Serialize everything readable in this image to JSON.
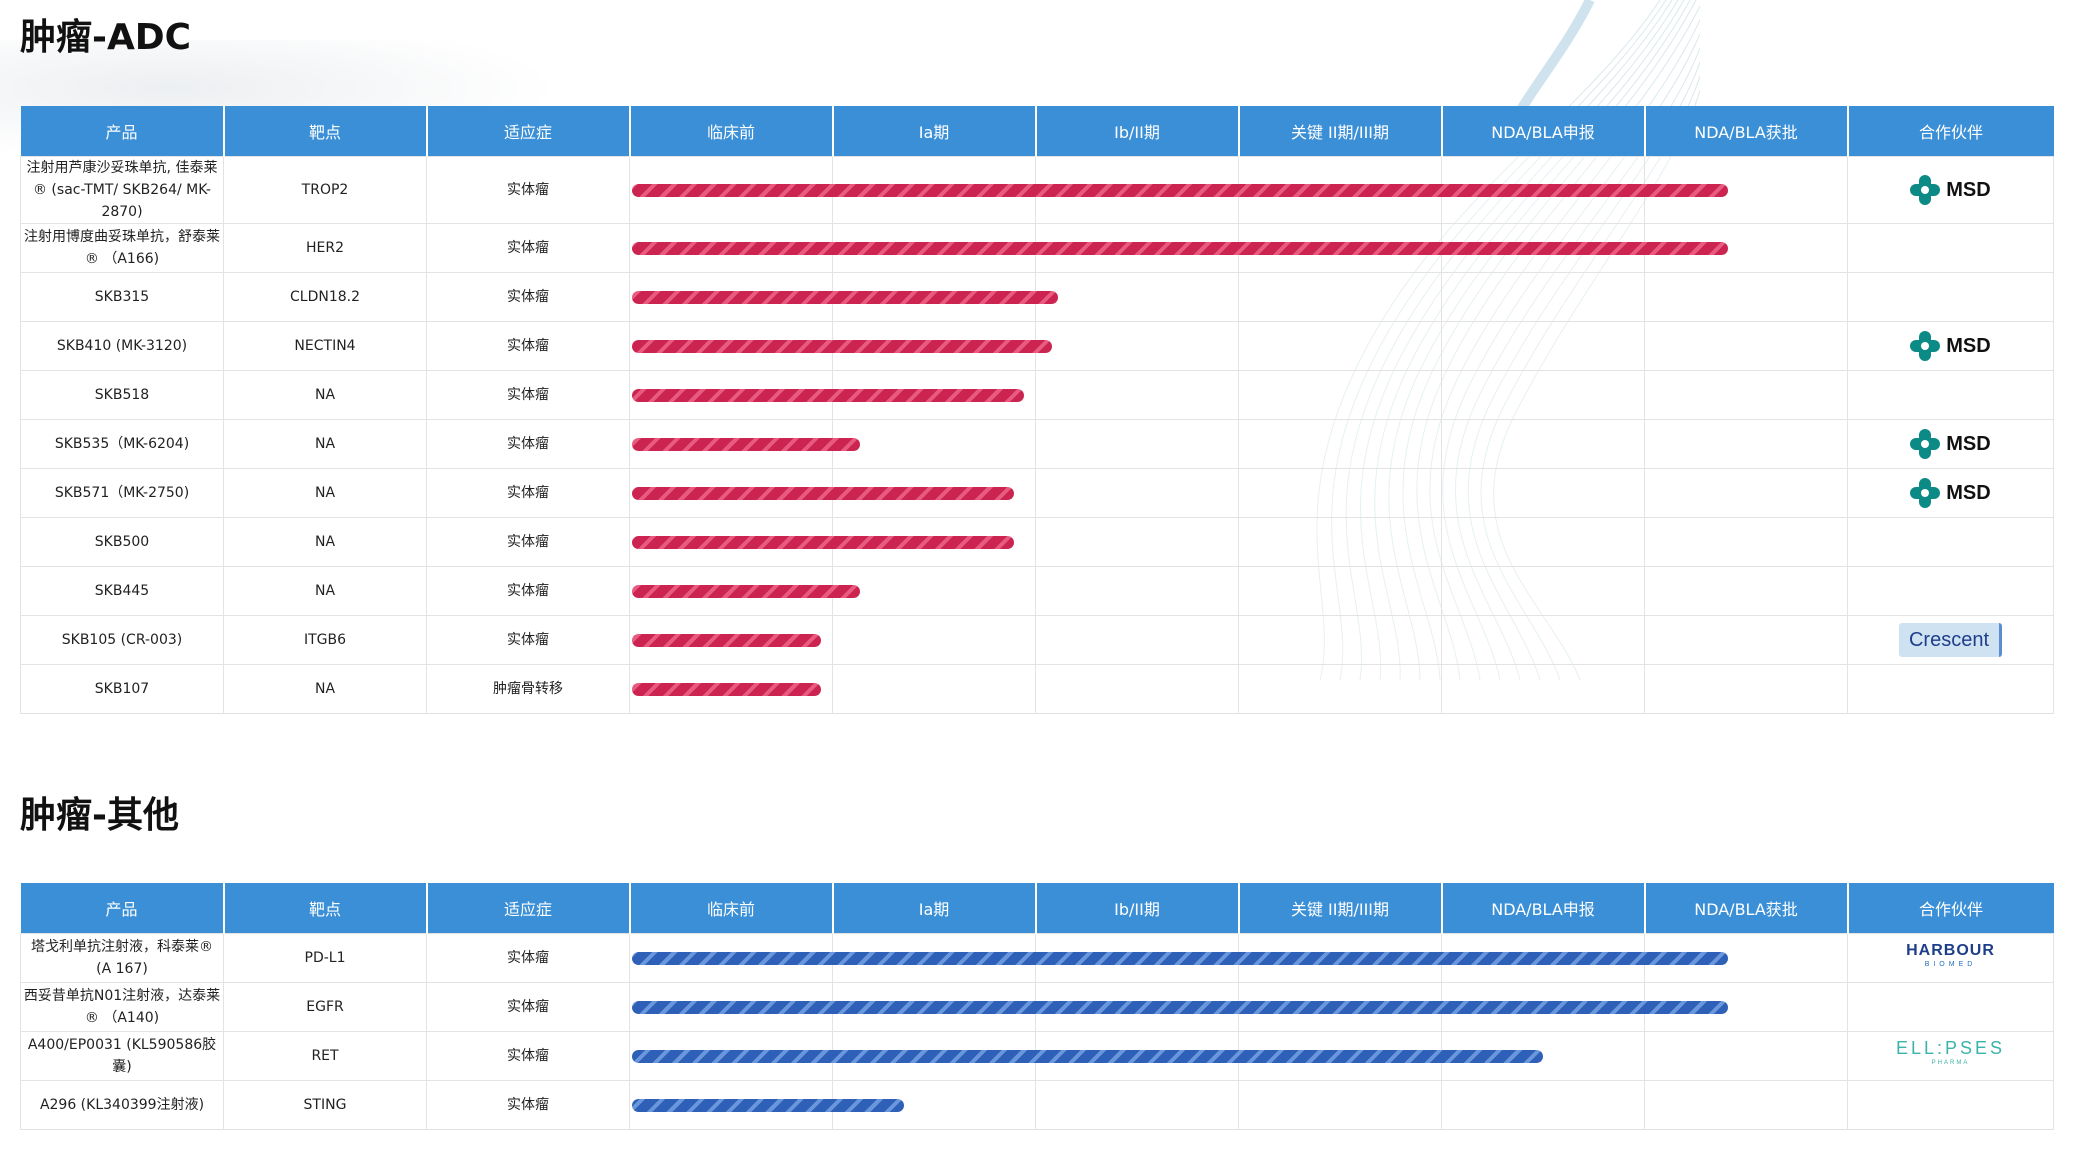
{
  "sections": [
    {
      "title": "肿瘤-ADC",
      "color": "red",
      "headers": [
        "产品",
        "靶点",
        "适应症",
        "临床前",
        "Ia期",
        "Ib/II期",
        "关键 II期/III期",
        "NDA/BLA申报",
        "NDA/BLA获批",
        "合作伙伴"
      ],
      "rows": [
        {
          "product": "注射用芦康沙妥珠单抗, 佳泰莱® (sac-TMT/ SKB264/ MK-2870)",
          "target": "TROP2",
          "indication": "实体瘤",
          "progress": 0.9,
          "partner": "MSD"
        },
        {
          "product": "注射用博度曲妥珠单抗，舒泰莱® （A166)",
          "target": "HER2",
          "indication": "实体瘤",
          "progress": 0.9,
          "partner": ""
        },
        {
          "product": "SKB315",
          "target": "CLDN18.2",
          "indication": "实体瘤",
          "progress": 0.35,
          "partner": ""
        },
        {
          "product": "SKB410 (MK-3120)",
          "target": "NECTIN4",
          "indication": "实体瘤",
          "progress": 0.345,
          "partner": "MSD"
        },
        {
          "product": "SKB518",
          "target": "NA",
          "indication": "实体瘤",
          "progress": 0.322,
          "partner": ""
        },
        {
          "product": "SKB535（MK-6204)",
          "target": "NA",
          "indication": "实体瘤",
          "progress": 0.187,
          "partner": "MSD"
        },
        {
          "product": "SKB571（MK-2750)",
          "target": "NA",
          "indication": "实体瘤",
          "progress": 0.314,
          "partner": "MSD"
        },
        {
          "product": "SKB500",
          "target": "NA",
          "indication": "实体瘤",
          "progress": 0.314,
          "partner": ""
        },
        {
          "product": "SKB445",
          "target": "NA",
          "indication": "实体瘤",
          "progress": 0.187,
          "partner": ""
        },
        {
          "product": "SKB105 (CR-003)",
          "target": "ITGB6",
          "indication": "实体瘤",
          "progress": 0.155,
          "partner": "Crescent"
        },
        {
          "product": "SKB107",
          "target": "NA",
          "indication": "肿瘤骨转移",
          "progress": 0.155,
          "partner": ""
        }
      ]
    },
    {
      "title": "肿瘤-其他",
      "color": "blue",
      "headers": [
        "产品",
        "靶点",
        "适应症",
        "临床前",
        "Ia期",
        "Ib/II期",
        "关键 II期/III期",
        "NDA/BLA申报",
        "NDA/BLA获批",
        "合作伙伴"
      ],
      "rows": [
        {
          "product": "塔戈利单抗注射液，科泰莱® (A 167)",
          "target": "PD-L1",
          "indication": "实体瘤",
          "progress": 0.9,
          "partner": "HARBOUR"
        },
        {
          "product": "西妥昔单抗N01注射液，达泰莱 ® （A140)",
          "target": "EGFR",
          "indication": "实体瘤",
          "progress": 0.9,
          "partner": ""
        },
        {
          "product": "A400/EP0031 (KL590586胶囊)",
          "target": "RET",
          "indication": "实体瘤",
          "progress": 0.748,
          "partner": "ELLIPSES"
        },
        {
          "product": "A296 (KL340399注射液)",
          "target": "STING",
          "indication": "实体瘤",
          "progress": 0.223,
          "partner": ""
        }
      ]
    }
  ],
  "partner_logos": {
    "MSD": {
      "text": "MSD",
      "icon": "msd-cross-icon"
    },
    "Crescent": {
      "text": "Crescent"
    },
    "HARBOUR": {
      "text": "HARBOUR",
      "sub": "BIOMED"
    },
    "ELLIPSES": {
      "text": "ELL:PSES",
      "sub": "PHARMA"
    }
  },
  "colors": {
    "header_bg": "#3a8fd6",
    "bar_red": "#cc2451",
    "bar_blue": "#2f60b8"
  }
}
